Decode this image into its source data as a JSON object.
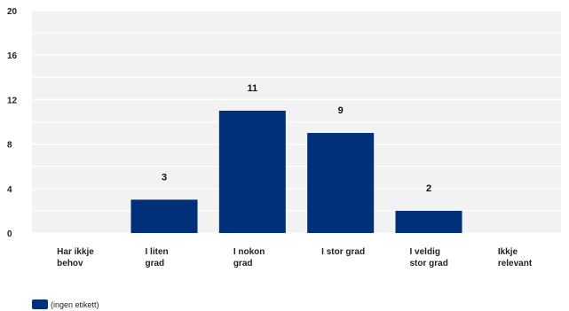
{
  "chart_data": {
    "type": "bar",
    "categories": [
      [
        "Har ikkje",
        "behov"
      ],
      [
        "I liten",
        "grad"
      ],
      [
        "I nokon",
        "grad"
      ],
      [
        "I stor grad"
      ],
      [
        "I veldig",
        "stor grad"
      ],
      [
        "Ikkje",
        "relevant"
      ]
    ],
    "series": [
      {
        "name": "(ingen etikett)",
        "values": [
          0,
          3,
          11,
          9,
          2,
          0
        ],
        "color": "#00307a"
      }
    ],
    "data_labels": [
      "",
      "3",
      "11",
      "9",
      "2",
      ""
    ],
    "ylim": [
      0,
      20
    ],
    "yticks": [
      0,
      4,
      8,
      12,
      16,
      20
    ],
    "grid": true,
    "legend_position": "bottom-left"
  },
  "colors": {
    "plot_background": "#f2f2f2",
    "gridline": "#ffffff",
    "bar": "#00307a"
  }
}
